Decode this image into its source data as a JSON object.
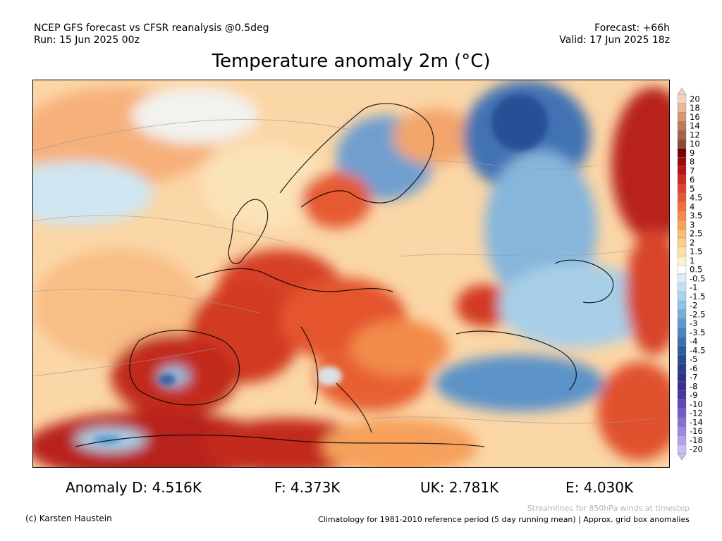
{
  "header": {
    "model": "NCEP GFS forecast vs CFSR reanalysis @0.5deg",
    "run": "Run: 15 Jun 2025 00z",
    "forecast": "Forecast: +66h",
    "valid": "Valid: 17 Jun 2025 18z",
    "title": "Temperature anomaly 2m (°C)"
  },
  "anomalies": {
    "d": "Anomaly D: 4.516K",
    "f": "F: 4.373K",
    "uk": "UK: 2.781K",
    "e": "E: 4.030K"
  },
  "footer": {
    "streamline_note": "Streamlines for 850hPa winds at timestep",
    "credit": "(c) Karsten Haustein",
    "climatology": "Climatology for 1981-2010 reference period (5 day running mean) | Approx. grid box anomalies"
  },
  "colorbar": {
    "labels": [
      "20",
      "18",
      "16",
      "14",
      "12",
      "10",
      "9",
      "8",
      "7",
      "6",
      "5",
      "4.5",
      "4",
      "3.5",
      "3",
      "2.5",
      "2",
      "1.5",
      "1",
      "0.5",
      "-0.5",
      "-1",
      "-1.5",
      "-2",
      "-2.5",
      "-3",
      "-3.5",
      "-4",
      "-4.5",
      "-5",
      "-6",
      "-7",
      "-8",
      "-9",
      "-10",
      "-12",
      "-14",
      "-16",
      "-18",
      "-20"
    ],
    "colors": [
      "#f5d2bf",
      "#ecb59a",
      "#d99672",
      "#c07a58",
      "#a86347",
      "#8a4a35",
      "#7a0000",
      "#9c0a0a",
      "#b81616",
      "#cf2a20",
      "#de402a",
      "#e85a34",
      "#f06f3c",
      "#f5894a",
      "#f8a35c",
      "#fbbb72",
      "#fcd088",
      "#fde3a2",
      "#fdf1c7",
      "#ffffff",
      "#dbeef7",
      "#c2e2f2",
      "#a9d4ec",
      "#8fc3e3",
      "#74b0d8",
      "#5c9bcc",
      "#4a86bf",
      "#3a70b0",
      "#2e5ca2",
      "#264b92",
      "#2b3f86",
      "#2a3384",
      "#3b2d92",
      "#4c33a3",
      "#6146b6",
      "#7559c5",
      "#8a6fd2",
      "#a087de",
      "#b6a1e9",
      "#cbbcf2"
    ]
  }
}
